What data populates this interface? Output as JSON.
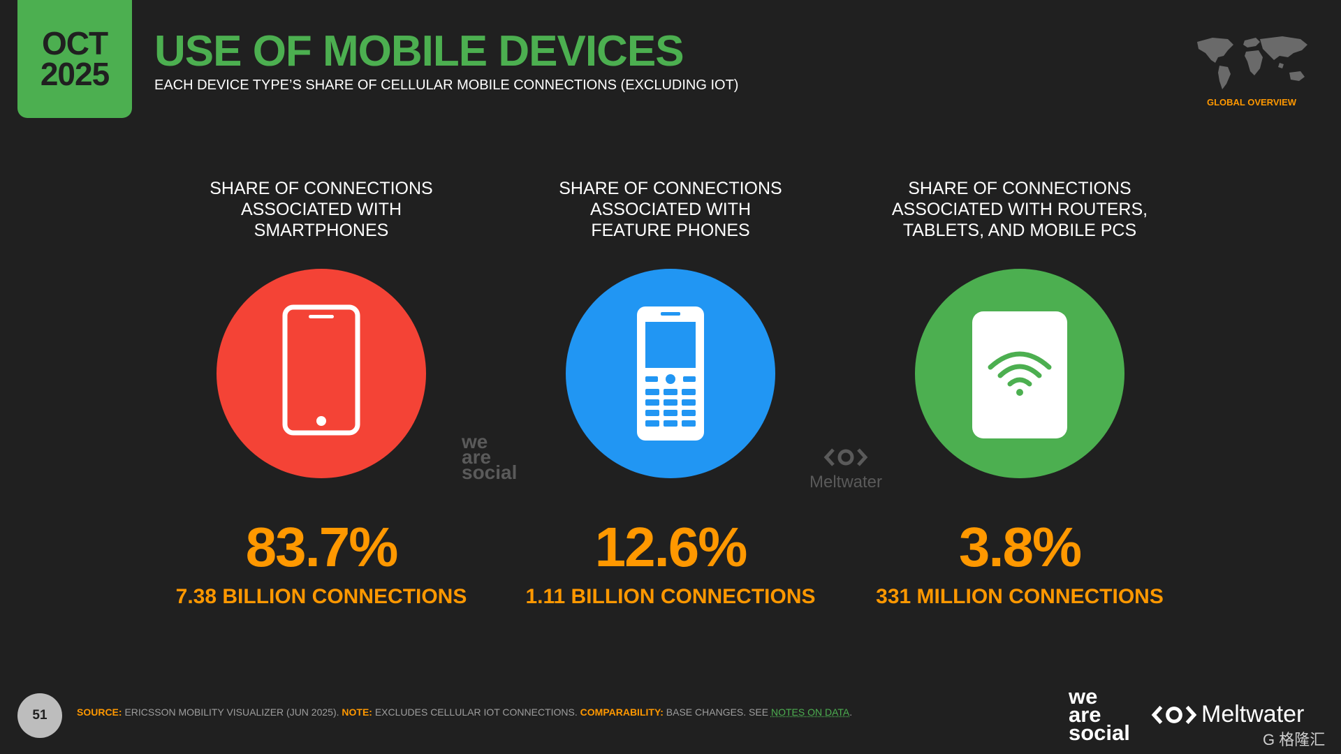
{
  "header": {
    "month": "OCT",
    "year": "2025",
    "title": "USE OF MOBILE DEVICES",
    "subtitle": "EACH DEVICE TYPE’S SHARE OF CELLULAR MOBILE CONNECTIONS (EXCLUDING IOT)",
    "section_label": "GLOBAL OVERVIEW"
  },
  "colors": {
    "background": "#202020",
    "accent_green": "#4caf50",
    "accent_orange": "#ff9800",
    "smartphone_red": "#f44336",
    "feature_blue": "#2196f3",
    "router_green": "#4caf50"
  },
  "stats": [
    {
      "label": "SHARE OF CONNECTIONS\nASSOCIATED WITH\nSMARTPHONES",
      "icon": "smartphone-icon",
      "percent": "83.7%",
      "connections": "7.38 BILLION CONNECTIONS"
    },
    {
      "label": "SHARE OF CONNECTIONS\nASSOCIATED WITH\nFEATURE PHONES",
      "icon": "feature-phone-icon",
      "percent": "12.6%",
      "connections": "1.11 BILLION CONNECTIONS"
    },
    {
      "label": "SHARE OF CONNECTIONS\nASSOCIATED WITH ROUTERS,\nTABLETS, AND MOBILE PCS",
      "icon": "router-wifi-icon",
      "percent": "3.8%",
      "connections": "331 MILLION CONNECTIONS"
    }
  ],
  "watermarks": {
    "we_are_social": "we\nare\nsocial",
    "meltwater": "Meltwater"
  },
  "footer": {
    "page_number": "51",
    "source_key": "SOURCE:",
    "source_text": " ERICSSON MOBILITY VISUALIZER (JUN 2025). ",
    "note_key": "NOTE:",
    "note_text": " EXCLUDES CELLULAR IOT CONNECTIONS. ",
    "comparability_key": "COMPARABILITY:",
    "comparability_text": " BASE CHANGES. SEE ",
    "notes_link": "NOTES ON DATA",
    "end": "."
  },
  "brands": {
    "we_are_social": "we\nare\nsocial",
    "meltwater": "Meltwater",
    "corner_mark": "G 格隆汇"
  }
}
